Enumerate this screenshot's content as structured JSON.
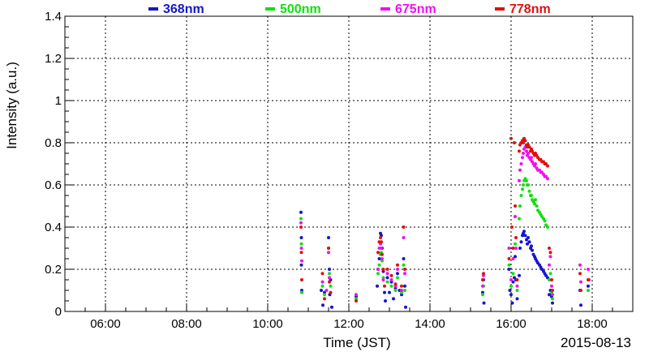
{
  "chart_data": {
    "type": "scatter",
    "title": "",
    "xlabel": "Time (JST)",
    "ylabel": "Intensity (a.u.)",
    "date_label": "2015-08-13",
    "x_unit": "hours (JST)",
    "xlim": [
      5.0,
      19.0
    ],
    "ylim": [
      0,
      1.4
    ],
    "x_ticks": [
      "06:00",
      "08:00",
      "10:00",
      "12:00",
      "14:00",
      "16:00",
      "18:00"
    ],
    "y_ticks": [
      "0",
      "0.2",
      "0.4",
      "0.6",
      "0.8",
      "1",
      "1.2",
      "1.4"
    ],
    "grid": true,
    "legend_position": "top",
    "series": [
      {
        "name": "368nm",
        "color": "#1515d0",
        "points": [
          [
            10.82,
            0.47
          ],
          [
            10.83,
            0.35
          ],
          [
            10.83,
            0.22
          ],
          [
            10.84,
            0.1
          ],
          [
            11.32,
            0.1
          ],
          [
            11.36,
            0.03
          ],
          [
            11.4,
            0.09
          ],
          [
            11.5,
            0.35
          ],
          [
            11.52,
            0.2
          ],
          [
            11.53,
            0.08
          ],
          [
            11.55,
            0.15
          ],
          [
            11.58,
            0.02
          ],
          [
            12.18,
            0.07
          ],
          [
            12.7,
            0.12
          ],
          [
            12.72,
            0.2
          ],
          [
            12.75,
            0.25
          ],
          [
            12.78,
            0.37
          ],
          [
            12.8,
            0.36
          ],
          [
            12.82,
            0.3
          ],
          [
            12.85,
            0.19
          ],
          [
            12.88,
            0.09
          ],
          [
            12.9,
            0.05
          ],
          [
            12.95,
            0.16
          ],
          [
            13.0,
            0.09
          ],
          [
            13.05,
            0.14
          ],
          [
            13.1,
            0.06
          ],
          [
            13.15,
            0.11
          ],
          [
            13.2,
            0.18
          ],
          [
            13.25,
            0.1
          ],
          [
            13.3,
            0.08
          ],
          [
            13.35,
            0.25
          ],
          [
            13.38,
            0.12
          ],
          [
            13.4,
            0.02
          ],
          [
            15.3,
            0.09
          ],
          [
            15.32,
            0.15
          ],
          [
            15.33,
            0.04
          ],
          [
            15.95,
            0.2
          ],
          [
            15.97,
            0.1
          ],
          [
            16.0,
            0.08
          ],
          [
            16.03,
            0.04
          ],
          [
            16.05,
            0.14
          ],
          [
            16.08,
            0.16
          ],
          [
            16.1,
            0.26
          ],
          [
            16.12,
            0.15
          ],
          [
            16.15,
            0.06
          ],
          [
            16.2,
            0.17
          ],
          [
            16.22,
            0.3
          ],
          [
            16.25,
            0.33
          ],
          [
            16.28,
            0.36
          ],
          [
            16.3,
            0.37
          ],
          [
            16.32,
            0.38
          ],
          [
            16.35,
            0.36
          ],
          [
            16.38,
            0.34
          ],
          [
            16.4,
            0.32
          ],
          [
            16.42,
            0.35
          ],
          [
            16.45,
            0.33
          ],
          [
            16.48,
            0.3
          ],
          [
            16.5,
            0.31
          ],
          [
            16.52,
            0.29
          ],
          [
            16.55,
            0.27
          ],
          [
            16.58,
            0.26
          ],
          [
            16.6,
            0.25
          ],
          [
            16.63,
            0.24
          ],
          [
            16.66,
            0.23
          ],
          [
            16.7,
            0.22
          ],
          [
            16.73,
            0.21
          ],
          [
            16.76,
            0.2
          ],
          [
            16.8,
            0.19
          ],
          [
            16.83,
            0.18
          ],
          [
            16.86,
            0.17
          ],
          [
            16.9,
            0.16
          ],
          [
            16.94,
            0.08
          ],
          [
            16.97,
            0.1
          ],
          [
            17.0,
            0.07
          ],
          [
            17.02,
            0.04
          ],
          [
            17.7,
            0.1
          ],
          [
            17.72,
            0.03
          ],
          [
            17.9,
            0.12
          ]
        ]
      },
      {
        "name": "500nm",
        "color": "#10e010",
        "points": [
          [
            10.82,
            0.44
          ],
          [
            10.83,
            0.32
          ],
          [
            10.84,
            0.09
          ],
          [
            11.35,
            0.12
          ],
          [
            11.4,
            0.08
          ],
          [
            11.5,
            0.3
          ],
          [
            11.52,
            0.18
          ],
          [
            11.55,
            0.12
          ],
          [
            12.18,
            0.06
          ],
          [
            12.72,
            0.18
          ],
          [
            12.75,
            0.22
          ],
          [
            12.78,
            0.27
          ],
          [
            12.8,
            0.28
          ],
          [
            12.82,
            0.24
          ],
          [
            12.85,
            0.16
          ],
          [
            12.95,
            0.14
          ],
          [
            13.05,
            0.12
          ],
          [
            13.15,
            0.1
          ],
          [
            13.2,
            0.16
          ],
          [
            13.3,
            0.09
          ],
          [
            13.35,
            0.22
          ],
          [
            13.38,
            0.1
          ],
          [
            15.3,
            0.08
          ],
          [
            15.32,
            0.12
          ],
          [
            15.95,
            0.22
          ],
          [
            16.0,
            0.12
          ],
          [
            16.05,
            0.18
          ],
          [
            16.1,
            0.32
          ],
          [
            16.15,
            0.1
          ],
          [
            16.2,
            0.44
          ],
          [
            16.22,
            0.5
          ],
          [
            16.25,
            0.55
          ],
          [
            16.28,
            0.58
          ],
          [
            16.3,
            0.6
          ],
          [
            16.32,
            0.62
          ],
          [
            16.35,
            0.63
          ],
          [
            16.38,
            0.62
          ],
          [
            16.4,
            0.6
          ],
          [
            16.42,
            0.6
          ],
          [
            16.45,
            0.57
          ],
          [
            16.48,
            0.55
          ],
          [
            16.5,
            0.55
          ],
          [
            16.52,
            0.53
          ],
          [
            16.55,
            0.52
          ],
          [
            16.58,
            0.51
          ],
          [
            16.6,
            0.53
          ],
          [
            16.63,
            0.5
          ],
          [
            16.66,
            0.48
          ],
          [
            16.7,
            0.47
          ],
          [
            16.73,
            0.46
          ],
          [
            16.76,
            0.45
          ],
          [
            16.8,
            0.44
          ],
          [
            16.83,
            0.43
          ],
          [
            16.86,
            0.41
          ],
          [
            16.9,
            0.4
          ],
          [
            16.94,
            0.15
          ],
          [
            16.97,
            0.18
          ],
          [
            17.0,
            0.09
          ],
          [
            17.02,
            0.06
          ],
          [
            17.9,
            0.1
          ]
        ]
      },
      {
        "name": "675nm",
        "color": "#f010f0",
        "points": [
          [
            10.82,
            0.42
          ],
          [
            10.83,
            0.3
          ],
          [
            10.84,
            0.24
          ],
          [
            11.35,
            0.14
          ],
          [
            11.45,
            0.1
          ],
          [
            11.5,
            0.28
          ],
          [
            11.52,
            0.16
          ],
          [
            12.18,
            0.08
          ],
          [
            12.72,
            0.2
          ],
          [
            12.75,
            0.3
          ],
          [
            12.78,
            0.32
          ],
          [
            12.8,
            0.3
          ],
          [
            12.82,
            0.25
          ],
          [
            12.85,
            0.15
          ],
          [
            12.95,
            0.18
          ],
          [
            13.05,
            0.15
          ],
          [
            13.15,
            0.12
          ],
          [
            13.2,
            0.2
          ],
          [
            13.3,
            0.1
          ],
          [
            13.35,
            0.35
          ],
          [
            13.38,
            0.18
          ],
          [
            15.3,
            0.12
          ],
          [
            15.32,
            0.17
          ],
          [
            15.95,
            0.3
          ],
          [
            16.0,
            0.15
          ],
          [
            16.05,
            0.25
          ],
          [
            16.1,
            0.45
          ],
          [
            16.12,
            0.3
          ],
          [
            16.15,
            0.12
          ],
          [
            16.2,
            0.62
          ],
          [
            16.22,
            0.67
          ],
          [
            16.25,
            0.7
          ],
          [
            16.28,
            0.73
          ],
          [
            16.3,
            0.75
          ],
          [
            16.32,
            0.77
          ],
          [
            16.35,
            0.78
          ],
          [
            16.38,
            0.76
          ],
          [
            16.4,
            0.74
          ],
          [
            16.42,
            0.75
          ],
          [
            16.45,
            0.73
          ],
          [
            16.48,
            0.72
          ],
          [
            16.5,
            0.73
          ],
          [
            16.52,
            0.71
          ],
          [
            16.55,
            0.7
          ],
          [
            16.58,
            0.69
          ],
          [
            16.6,
            0.7
          ],
          [
            16.63,
            0.68
          ],
          [
            16.66,
            0.67
          ],
          [
            16.7,
            0.67
          ],
          [
            16.73,
            0.66
          ],
          [
            16.76,
            0.66
          ],
          [
            16.8,
            0.65
          ],
          [
            16.83,
            0.64
          ],
          [
            16.86,
            0.64
          ],
          [
            16.9,
            0.63
          ],
          [
            16.94,
            0.22
          ],
          [
            16.97,
            0.26
          ],
          [
            17.0,
            0.12
          ],
          [
            17.02,
            0.08
          ],
          [
            17.7,
            0.22
          ],
          [
            17.72,
            0.14
          ],
          [
            17.9,
            0.2
          ],
          [
            17.92,
            0.15
          ]
        ]
      },
      {
        "name": "778nm",
        "color": "#e01010",
        "points": [
          [
            10.82,
            0.4
          ],
          [
            10.83,
            0.28
          ],
          [
            10.84,
            0.15
          ],
          [
            11.35,
            0.18
          ],
          [
            11.4,
            0.06
          ],
          [
            11.5,
            0.3
          ],
          [
            11.52,
            0.14
          ],
          [
            11.55,
            0.09
          ],
          [
            12.18,
            0.05
          ],
          [
            12.72,
            0.28
          ],
          [
            12.75,
            0.33
          ],
          [
            12.78,
            0.35
          ],
          [
            12.8,
            0.33
          ],
          [
            12.82,
            0.27
          ],
          [
            12.85,
            0.2
          ],
          [
            12.88,
            0.12
          ],
          [
            12.95,
            0.2
          ],
          [
            13.05,
            0.17
          ],
          [
            13.15,
            0.13
          ],
          [
            13.2,
            0.22
          ],
          [
            13.3,
            0.12
          ],
          [
            13.35,
            0.4
          ],
          [
            13.38,
            0.2
          ],
          [
            15.3,
            0.15
          ],
          [
            15.32,
            0.18
          ],
          [
            15.95,
            0.25
          ],
          [
            16.0,
            0.82
          ],
          [
            16.02,
            0.4
          ],
          [
            16.05,
            0.3
          ],
          [
            16.08,
            0.8
          ],
          [
            16.1,
            0.5
          ],
          [
            16.12,
            0.35
          ],
          [
            16.15,
            0.15
          ],
          [
            16.2,
            0.76
          ],
          [
            16.22,
            0.79
          ],
          [
            16.25,
            0.8
          ],
          [
            16.28,
            0.81
          ],
          [
            16.3,
            0.8
          ],
          [
            16.32,
            0.82
          ],
          [
            16.35,
            0.81
          ],
          [
            16.38,
            0.79
          ],
          [
            16.4,
            0.78
          ],
          [
            16.42,
            0.79
          ],
          [
            16.45,
            0.78
          ],
          [
            16.48,
            0.76
          ],
          [
            16.5,
            0.77
          ],
          [
            16.52,
            0.76
          ],
          [
            16.55,
            0.75
          ],
          [
            16.58,
            0.74
          ],
          [
            16.6,
            0.75
          ],
          [
            16.63,
            0.74
          ],
          [
            16.66,
            0.73
          ],
          [
            16.7,
            0.72
          ],
          [
            16.73,
            0.72
          ],
          [
            16.76,
            0.71
          ],
          [
            16.8,
            0.71
          ],
          [
            16.83,
            0.7
          ],
          [
            16.86,
            0.7
          ],
          [
            16.9,
            0.69
          ],
          [
            16.94,
            0.3
          ],
          [
            16.97,
            0.28
          ],
          [
            17.0,
            0.15
          ],
          [
            17.02,
            0.1
          ],
          [
            17.7,
            0.18
          ],
          [
            17.72,
            0.1
          ],
          [
            17.9,
            0.15
          ]
        ]
      }
    ]
  }
}
